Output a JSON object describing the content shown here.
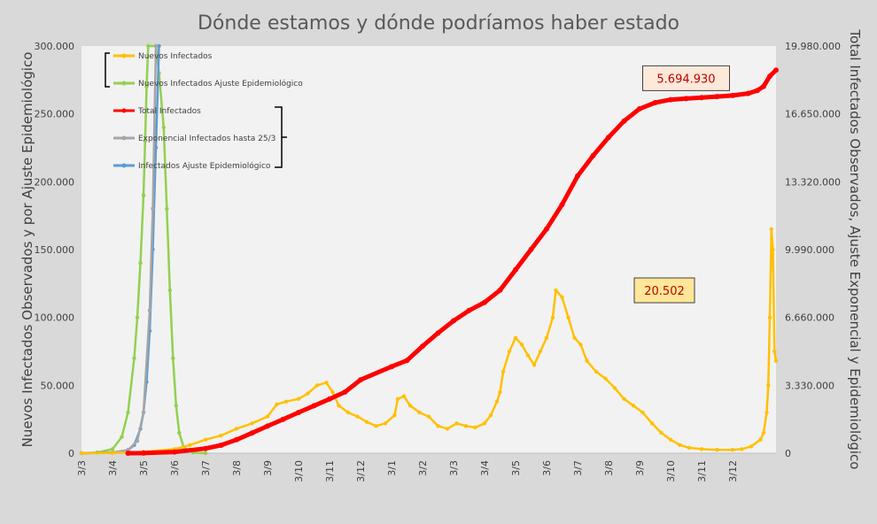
{
  "chart_data": {
    "type": "line",
    "title": "Dónde estamos y dónde podríamos haber estado",
    "ylabel_left": "Nuevos Infectados Observados y por Ajuste Epidemiológico",
    "ylabel_right": "Total Infectados Observados, Ajuste Exponencial y Epidemiológico",
    "xlabel": "",
    "x_tick_labels": [
      "3/3",
      "3/4",
      "3/5",
      "3/6",
      "3/7",
      "3/8",
      "3/9",
      "3/10",
      "3/11",
      "3/12",
      "3/1",
      "3/2",
      "3/3",
      "3/4",
      "3/5",
      "3/6",
      "3/7",
      "3/8",
      "3/9",
      "3/10",
      "3/11",
      "3/12"
    ],
    "x_range": [
      0,
      22.4
    ],
    "ylim_left": [
      0,
      300000
    ],
    "ylim_right": [
      0,
      19980000
    ],
    "y_ticks_left": [
      "0",
      "50.000",
      "100.000",
      "150.000",
      "200.000",
      "250.000",
      "300.000"
    ],
    "y_ticks_right": [
      "0",
      "3.330.000",
      "6.660.000",
      "9.990.000",
      "13.320.000",
      "16.650.000",
      "19.980.000"
    ],
    "grid": false,
    "legend_position": "top-left",
    "colors": {
      "nuevos": "#ffc000",
      "ajuste_nuevos": "#92d050",
      "total": "#ff0000",
      "exponencial": "#a5a5a5",
      "ajuste_total": "#5b9bd5"
    },
    "series": [
      {
        "name": "Nuevos Infectados",
        "axis": "left",
        "color": "#ffc000",
        "points": [
          [
            0.0,
            0
          ],
          [
            1.0,
            200
          ],
          [
            2.0,
            1000
          ],
          [
            3.0,
            3000
          ],
          [
            3.5,
            6000
          ],
          [
            4.0,
            10000
          ],
          [
            4.5,
            13000
          ],
          [
            5.0,
            18000
          ],
          [
            5.5,
            22000
          ],
          [
            6.0,
            27000
          ],
          [
            6.3,
            36000
          ],
          [
            6.6,
            38000
          ],
          [
            7.0,
            40000
          ],
          [
            7.3,
            44000
          ],
          [
            7.6,
            50000
          ],
          [
            7.9,
            52000
          ],
          [
            8.1,
            45000
          ],
          [
            8.3,
            35000
          ],
          [
            8.6,
            30000
          ],
          [
            8.9,
            27000
          ],
          [
            9.2,
            23000
          ],
          [
            9.5,
            20000
          ],
          [
            9.8,
            22000
          ],
          [
            10.1,
            28000
          ],
          [
            10.2,
            40000
          ],
          [
            10.4,
            42000
          ],
          [
            10.6,
            35000
          ],
          [
            10.9,
            30000
          ],
          [
            11.2,
            27000
          ],
          [
            11.5,
            20000
          ],
          [
            11.8,
            18000
          ],
          [
            12.1,
            22000
          ],
          [
            12.4,
            20000
          ],
          [
            12.7,
            19000
          ],
          [
            13.0,
            22000
          ],
          [
            13.2,
            28000
          ],
          [
            13.4,
            38000
          ],
          [
            13.5,
            45000
          ],
          [
            13.6,
            60000
          ],
          [
            13.8,
            75000
          ],
          [
            14.0,
            85000
          ],
          [
            14.2,
            80000
          ],
          [
            14.4,
            72000
          ],
          [
            14.6,
            65000
          ],
          [
            14.8,
            75000
          ],
          [
            15.0,
            85000
          ],
          [
            15.2,
            100000
          ],
          [
            15.3,
            120000
          ],
          [
            15.5,
            115000
          ],
          [
            15.7,
            100000
          ],
          [
            15.9,
            85000
          ],
          [
            16.1,
            80000
          ],
          [
            16.3,
            68000
          ],
          [
            16.6,
            60000
          ],
          [
            16.9,
            55000
          ],
          [
            17.2,
            48000
          ],
          [
            17.5,
            40000
          ],
          [
            17.8,
            35000
          ],
          [
            18.1,
            30000
          ],
          [
            18.4,
            22000
          ],
          [
            18.7,
            15000
          ],
          [
            19.0,
            10000
          ],
          [
            19.3,
            6000
          ],
          [
            19.6,
            4000
          ],
          [
            20.0,
            3000
          ],
          [
            20.5,
            2500
          ],
          [
            21.0,
            2500
          ],
          [
            21.3,
            3000
          ],
          [
            21.6,
            5000
          ],
          [
            21.9,
            10000
          ],
          [
            22.0,
            15000
          ],
          [
            22.1,
            30000
          ],
          [
            22.15,
            50000
          ],
          [
            22.2,
            100000
          ],
          [
            22.25,
            165000
          ],
          [
            22.3,
            150000
          ],
          [
            22.35,
            75000
          ],
          [
            22.4,
            68000
          ]
        ]
      },
      {
        "name": "Nuevos Infectados Ajuste Epidemiológico",
        "axis": "left",
        "color": "#92d050",
        "points": [
          [
            0.0,
            0
          ],
          [
            0.5,
            500
          ],
          [
            1.0,
            3000
          ],
          [
            1.3,
            12000
          ],
          [
            1.5,
            30000
          ],
          [
            1.7,
            70000
          ],
          [
            1.8,
            100000
          ],
          [
            1.9,
            140000
          ],
          [
            2.0,
            190000
          ],
          [
            2.05,
            230000
          ],
          [
            2.1,
            270000
          ],
          [
            2.15,
            300000
          ],
          [
            2.4,
            300000
          ],
          [
            2.5,
            280000
          ],
          [
            2.65,
            240000
          ],
          [
            2.75,
            180000
          ],
          [
            2.85,
            120000
          ],
          [
            2.95,
            70000
          ],
          [
            3.05,
            35000
          ],
          [
            3.15,
            15000
          ],
          [
            3.3,
            4000
          ],
          [
            3.6,
            500
          ],
          [
            4.0,
            0
          ]
        ]
      },
      {
        "name": "Total Infectados",
        "axis": "right",
        "color": "#ff0000",
        "points": [
          [
            1.5,
            0
          ],
          [
            2.0,
            5000
          ],
          [
            3.0,
            60000
          ],
          [
            4.0,
            230000
          ],
          [
            4.5,
            390000
          ],
          [
            5.0,
            660000
          ],
          [
            5.5,
            990000
          ],
          [
            6.0,
            1330000
          ],
          [
            6.5,
            1660000
          ],
          [
            7.0,
            2000000
          ],
          [
            7.5,
            2330000
          ],
          [
            8.0,
            2660000
          ],
          [
            8.5,
            3000000
          ],
          [
            9.0,
            3600000
          ],
          [
            10.0,
            4250000
          ],
          [
            10.5,
            4550000
          ],
          [
            11.0,
            5250000
          ],
          [
            11.5,
            5900000
          ],
          [
            12.0,
            6500000
          ],
          [
            12.5,
            7000000
          ],
          [
            13.0,
            7400000
          ],
          [
            13.5,
            8000000
          ],
          [
            14.0,
            9000000
          ],
          [
            14.5,
            10000000
          ],
          [
            15.0,
            11000000
          ],
          [
            15.5,
            12200000
          ],
          [
            16.0,
            13600000
          ],
          [
            16.5,
            14600000
          ],
          [
            17.0,
            15500000
          ],
          [
            17.5,
            16300000
          ],
          [
            18.0,
            16900000
          ],
          [
            18.5,
            17200000
          ],
          [
            19.0,
            17350000
          ],
          [
            19.5,
            17400000
          ],
          [
            20.0,
            17450000
          ],
          [
            20.5,
            17500000
          ],
          [
            21.0,
            17550000
          ],
          [
            21.5,
            17650000
          ],
          [
            21.8,
            17800000
          ],
          [
            22.0,
            18000000
          ],
          [
            22.2,
            18500000
          ],
          [
            22.4,
            18800000
          ]
        ]
      },
      {
        "name": "Exponencial Infectados hasta 25/3",
        "axis": "right",
        "color": "#a5a5a5",
        "points": [
          [
            0.0,
            0
          ],
          [
            1.0,
            30000
          ],
          [
            1.5,
            150000
          ],
          [
            1.8,
            600000
          ],
          [
            2.0,
            2000000
          ],
          [
            2.2,
            7000000
          ],
          [
            2.3,
            12000000
          ],
          [
            2.4,
            19980000
          ]
        ]
      },
      {
        "name": "Infectados Ajuste Epidemiológico",
        "axis": "right",
        "color": "#5b9bd5",
        "points": [
          [
            0.0,
            0
          ],
          [
            1.0,
            30000
          ],
          [
            1.5,
            150000
          ],
          [
            1.7,
            400000
          ],
          [
            1.9,
            1200000
          ],
          [
            2.0,
            2000000
          ],
          [
            2.1,
            3500000
          ],
          [
            2.2,
            6000000
          ],
          [
            2.3,
            10000000
          ],
          [
            2.4,
            15000000
          ],
          [
            2.5,
            19980000
          ]
        ]
      }
    ],
    "callouts": [
      {
        "text": "5.694.930",
        "fill": "#fde9d9",
        "x": 19.5,
        "axis": "right",
        "y": 18400000
      },
      {
        "text": "20.502",
        "fill": "#ffe699",
        "x": 18.8,
        "axis": "left",
        "y": 120000
      }
    ]
  }
}
